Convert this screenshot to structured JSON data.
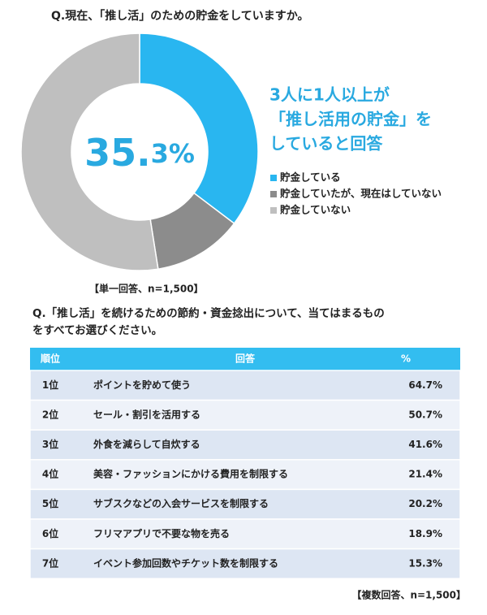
{
  "chart_data": {
    "type": "donut",
    "title": "Q.現在、「推し活」のための貯金をしていますか。",
    "categories": [
      "貯金している",
      "貯金していたが、現在はしていない",
      "貯金していない"
    ],
    "values": [
      35.3,
      12.2,
      52.5
    ],
    "value_labels": [
      "35.3%",
      null,
      null
    ],
    "colors": [
      "#29b6f0",
      "#8c8c8c",
      "#bfbfbf"
    ],
    "annotation": [
      "3人に1人以上が",
      "「推し活用の貯金」を",
      "していると回答"
    ],
    "note": "【単一回答、n=1,500】",
    "legend": "right"
  },
  "table": {
    "title": [
      "Q.「推し活」を続けるための節約・資金捻出について、当てはまるもの",
      "をすべてお選びください。"
    ],
    "header": [
      "順位",
      "回答",
      "%"
    ],
    "rows": [
      [
        "1位",
        "ポイントを貯めて使う",
        "64.7%"
      ],
      [
        "2位",
        "セール・割引を活用する",
        "50.7%"
      ],
      [
        "3位",
        "外食を減らして自炊する",
        "41.6%"
      ],
      [
        "4位",
        "美容・ファッションにかける費用を制限する",
        "21.4%"
      ],
      [
        "5位",
        "サブスクなどの入会サービスを制限する",
        "20.2%"
      ],
      [
        "6位",
        "フリマアプリで不要な物を売る",
        "18.9%"
      ],
      [
        "7位",
        "イベント参加回数やチケット数を制限する",
        "15.3%"
      ]
    ],
    "note": "【複数回答、n=1,500】"
  }
}
